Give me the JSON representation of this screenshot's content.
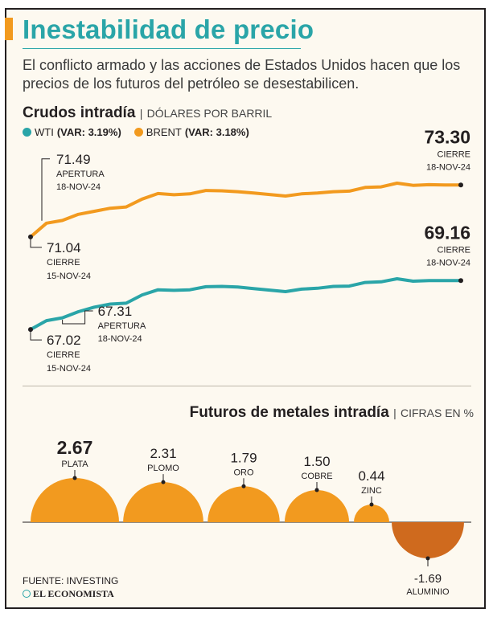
{
  "header": {
    "title": "Inestabilidad de precio",
    "subtitle": "El conflicto armado y las acciones de Estados Unidos hacen que los precios de los futuros del petróleo se desestabilicen."
  },
  "crude_section": {
    "title": "Crudos intradía",
    "separator": "|",
    "unit": "DÓLARES POR BARRIL"
  },
  "legend": [
    {
      "name": "WTI",
      "var": "(VAR: 3.19%)",
      "color": "#2aa5a8"
    },
    {
      "name": "BRENT",
      "var": "(VAR: 3.18%)",
      "color": "#f29a1f"
    }
  ],
  "metals_section": {
    "title": "Futuros de metales intradía",
    "separator": "|",
    "unit": "CIFRAS EN %"
  },
  "footer": {
    "source": "FUENTE: INVESTING",
    "brand": "EL ECONOMISTA"
  },
  "colors": {
    "brent": "#f29a1f",
    "wti": "#2aa5a8",
    "metal_positive": "#f29a1f",
    "metal_negative": "#cf6a1e"
  },
  "chart_data": [
    {
      "type": "line",
      "title": "Crudos intradía",
      "ylabel": "DÓLARES POR BARRIL",
      "series": [
        {
          "name": "BRENT",
          "values": [
            71.04,
            71.49,
            71.58,
            71.78,
            71.88,
            71.98,
            72.02,
            72.28,
            72.46,
            72.42,
            72.45,
            72.56,
            72.55,
            72.52,
            72.48,
            72.43,
            72.38,
            72.45,
            72.48,
            72.52,
            72.54,
            72.66,
            72.68,
            72.8,
            72.73,
            72.75,
            72.74,
            73.3
          ],
          "annotations": [
            {
              "index": 0,
              "value": "71.04",
              "label": "CIERRE",
              "date": "15-NOV-24"
            },
            {
              "index": 1,
              "value": "71.49",
              "label": "APERTURA",
              "date": "18-NOV-24"
            },
            {
              "index": 27,
              "value": "73.30",
              "label": "CIERRE",
              "date": "18-NOV-24"
            }
          ]
        },
        {
          "name": "WTI",
          "values": [
            67.02,
            67.31,
            67.4,
            67.6,
            67.75,
            67.85,
            67.88,
            68.15,
            68.32,
            68.3,
            68.32,
            68.42,
            68.43,
            68.41,
            68.36,
            68.31,
            68.26,
            68.34,
            68.37,
            68.43,
            68.44,
            68.56,
            68.58,
            68.68,
            68.6,
            68.62,
            68.62,
            69.16
          ],
          "annotations": [
            {
              "index": 0,
              "value": "67.02",
              "label": "CIERRE",
              "date": "15-NOV-24"
            },
            {
              "index": 1,
              "value": "67.31",
              "label": "APERTURA",
              "date": "18-NOV-24"
            },
            {
              "index": 27,
              "value": "69.16",
              "label": "CIERRE",
              "date": "18-NOV-24"
            }
          ]
        }
      ]
    },
    {
      "type": "bar",
      "title": "Futuros de metales intradía",
      "ylabel": "CIFRAS EN %",
      "categories": [
        "PLATA",
        "PLOMO",
        "ORO",
        "COBRE",
        "ZINC",
        "ALUMINIO"
      ],
      "values": [
        2.67,
        2.31,
        1.79,
        1.5,
        0.44,
        -1.69
      ],
      "labels": [
        "2.67",
        "2.31",
        "1.79",
        "1.50",
        "0.44",
        "-1.69"
      ]
    }
  ]
}
